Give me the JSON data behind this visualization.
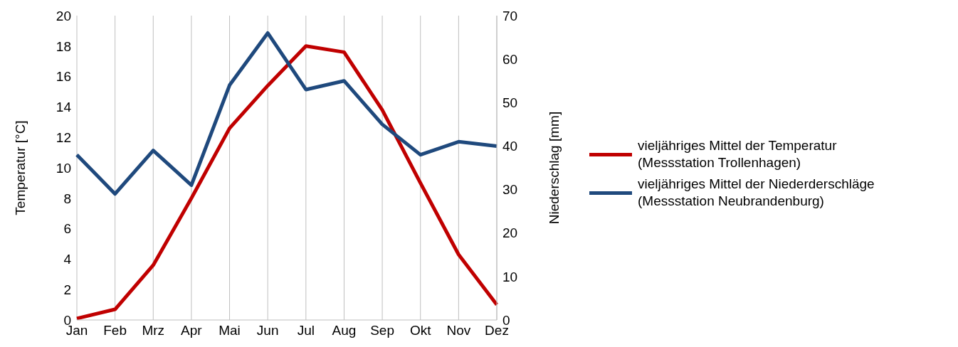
{
  "chart_data": {
    "type": "line",
    "categories": [
      "Jan",
      "Feb",
      "Mrz",
      "Apr",
      "Mai",
      "Jun",
      "Jul",
      "Aug",
      "Sep",
      "Okt",
      "Nov",
      "Dez"
    ],
    "ylabel": "Temperatur [°C]",
    "y2label": "Niederschlag [mm]",
    "ylim": [
      0,
      20
    ],
    "yticks": [
      0,
      2,
      4,
      6,
      8,
      10,
      12,
      14,
      16,
      18,
      20
    ],
    "y2lim": [
      0,
      70
    ],
    "y2ticks": [
      0,
      10,
      20,
      30,
      40,
      50,
      60,
      70
    ],
    "series": [
      {
        "name": "vieljähriges Mittel der Temperatur\n(Messstation Trollenhagen)",
        "color": "#c00000",
        "values": [
          0.1,
          0.7,
          3.6,
          8.0,
          12.6,
          15.4,
          18.0,
          17.6,
          13.8,
          9.0,
          4.3,
          1.0
        ]
      },
      {
        "name": "vieljähriges Mittel der Niederderschläge\n(Messstation Neubrandenburg)",
        "color": "#1f497d",
        "axis": "y2",
        "values": [
          38,
          29,
          39,
          31,
          54,
          66,
          53,
          55,
          45,
          38,
          41,
          40
        ]
      }
    ],
    "grid": "x",
    "legend": "right",
    "marker": "none",
    "line_style": "solid"
  }
}
